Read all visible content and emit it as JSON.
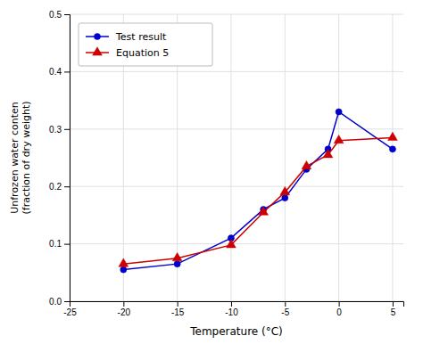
{
  "chart_data": {
    "type": "line",
    "xlabel": "Temperature (°C)",
    "ylabel": [
      "Unfrozen water conten",
      "(fraction of dry weight)"
    ],
    "x": [
      -20,
      -15,
      -10,
      -7,
      -5,
      -3,
      -1,
      0,
      5
    ],
    "series": [
      {
        "name": "Test result",
        "color": "#0000cc",
        "marker": "circle",
        "line_style": "solid",
        "values": [
          0.055,
          0.065,
          0.11,
          0.16,
          0.18,
          0.23,
          0.265,
          0.33,
          0.265
        ]
      },
      {
        "name": "Equation 5",
        "color": "#cc0000",
        "marker": "triangle",
        "line_style": "solid",
        "values": [
          0.065,
          0.075,
          0.098,
          0.155,
          0.19,
          0.235,
          0.255,
          0.28,
          0.285
        ]
      }
    ],
    "xlim": [
      -25,
      6
    ],
    "ylim": [
      0,
      0.5
    ],
    "xticks": [
      -25,
      -20,
      -15,
      -10,
      -5,
      0,
      5
    ],
    "yticks": [
      {
        "value": 0,
        "label": "0.0"
      },
      0.1,
      0.2,
      0.3,
      0.4,
      0.5
    ],
    "grid": true,
    "legend": "upper left"
  }
}
